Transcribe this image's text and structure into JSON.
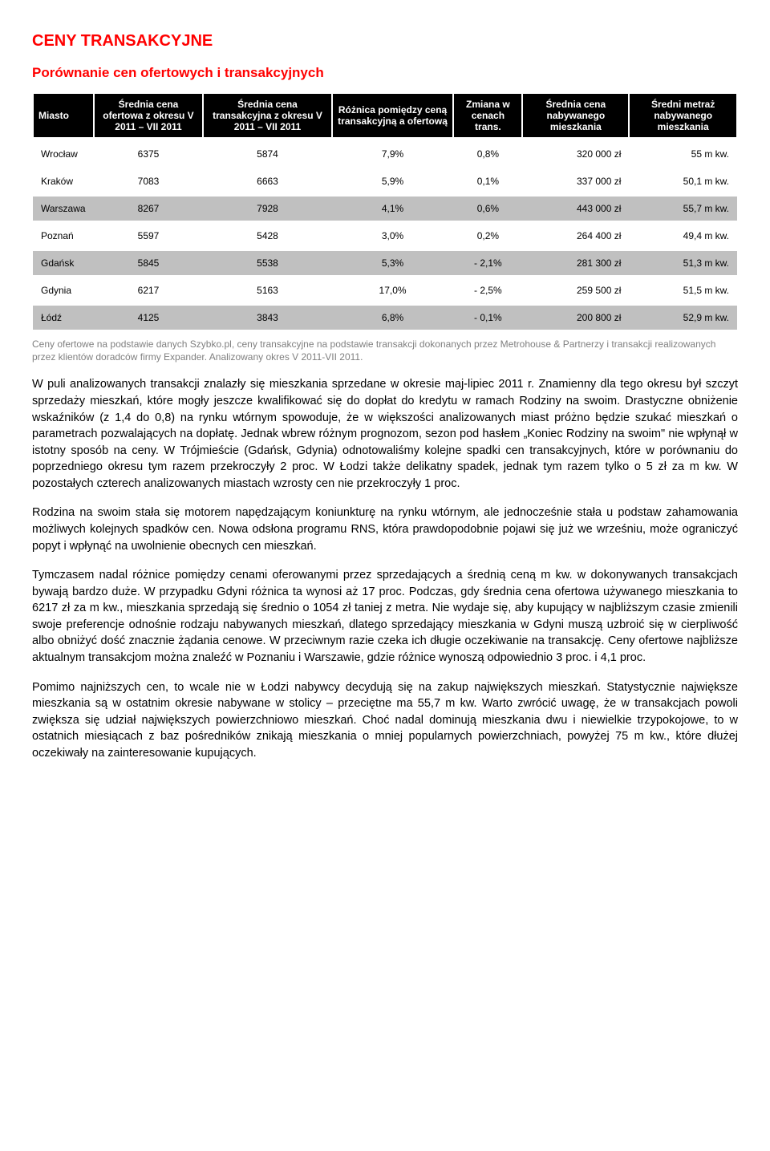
{
  "title": "CENY TRANSAKCYJNE",
  "subtitle": "Porównanie cen ofertowych i transakcyjnych",
  "table": {
    "columns": [
      "Miasto",
      "Średnia cena ofertowa z okresu V 2011 – VII 2011",
      "Średnia cena transakcyjna z okresu V 2011 – VII 2011",
      "Różnica pomiędzy ceną transakcyjną a ofertową",
      "Zmiana w cenach trans.",
      "Średnia cena nabywanego mieszkania",
      "Średni metraż nabywanego mieszkania"
    ],
    "rows": [
      {
        "city": "Wrocław",
        "offer": "6375",
        "trans": "5874",
        "diff": "7,9%",
        "chg": "0,8%",
        "avgPrice": "320 000 zł",
        "avgArea": "55 m kw."
      },
      {
        "city": "Kraków",
        "offer": "7083",
        "trans": "6663",
        "diff": "5,9%",
        "chg": "0,1%",
        "avgPrice": "337 000 zł",
        "avgArea": "50,1 m kw."
      },
      {
        "city": "Warszawa",
        "offer": "8267",
        "trans": "7928",
        "diff": "4,1%",
        "chg": "0,6%",
        "avgPrice": "443 000 zł",
        "avgArea": "55,7 m kw."
      },
      {
        "city": "Poznań",
        "offer": "5597",
        "trans": "5428",
        "diff": "3,0%",
        "chg": "0,2%",
        "avgPrice": "264 400 zł",
        "avgArea": "49,4 m kw."
      },
      {
        "city": "Gdańsk",
        "offer": "5845",
        "trans": "5538",
        "diff": "5,3%",
        "chg": "- 2,1%",
        "avgPrice": "281 300 zł",
        "avgArea": "51,3 m kw."
      },
      {
        "city": "Gdynia",
        "offer": "6217",
        "trans": "5163",
        "diff": "17,0%",
        "chg": "- 2,5%",
        "avgPrice": "259 500 zł",
        "avgArea": "51,5 m kw."
      },
      {
        "city": "Łódź",
        "offer": "4125",
        "trans": "3843",
        "diff": "6,8%",
        "chg": "- 0,1%",
        "avgPrice": "200 800 zł",
        "avgArea": "52,9 m kw."
      }
    ],
    "row_bg_colors": [
      "#ffffff",
      "#ffffff",
      "#c0c0c0",
      "#ffffff",
      "#c0c0c0",
      "#ffffff",
      "#c0c0c0"
    ],
    "header_bg": "#000000",
    "header_fg": "#ffffff",
    "font_size": 12
  },
  "footnote": "Ceny ofertowe na podstawie danych Szybko.pl, ceny transakcyjne na podstawie transakcji dokonanych przez Metrohouse & Partnerzy i transakcji realizowanych przez klientów doradców firmy Expander. Analizowany okres V 2011-VII 2011.",
  "paragraphs": [
    "W puli analizowanych transakcji znalazły się mieszkania sprzedane w okresie maj-lipiec 2011 r. Znamienny dla tego okresu był szczyt sprzedaży mieszkań, które mogły jeszcze kwalifikować się do dopłat do kredytu w ramach Rodziny na swoim. Drastyczne obniżenie wskaźników (z 1,4 do 0,8) na rynku wtórnym spowoduje, że w większości analizowanych miast próżno będzie szukać mieszkań o parametrach pozwalających na dopłatę. Jednak wbrew różnym prognozom, sezon pod hasłem „Koniec Rodziny na swoim\" nie wpłynął w istotny sposób na ceny. W Trójmieście (Gdańsk, Gdynia) odnotowaliśmy kolejne spadki cen transakcyjnych, które w porównaniu do poprzedniego okresu tym razem przekroczyły 2 proc. W Łodzi także delikatny spadek, jednak tym razem tylko o 5 zł za m kw. W pozostałych czterech analizowanych miastach wzrosty cen nie przekroczyły 1 proc.",
    "Rodzina na swoim stała się motorem napędzającym koniunkturę na rynku wtórnym, ale jednocześnie stała u podstaw zahamowania możliwych kolejnych spadków cen. Nowa odsłona programu RNS, która prawdopodobnie pojawi się już we wrześniu, może ograniczyć popyt i wpłynąć na uwolnienie obecnych cen mieszkań.",
    "Tymczasem nadal różnice pomiędzy cenami oferowanymi przez sprzedających a średnią ceną m kw. w dokonywanych transakcjach bywają bardzo duże. W przypadku Gdyni różnica ta wynosi aż 17 proc. Podczas, gdy średnia cena ofertowa używanego mieszkania to 6217 zł za m kw., mieszkania sprzedają się średnio o 1054 zł taniej z metra. Nie wydaje się, aby kupujący w najbliższym czasie zmienili swoje preferencje odnośnie rodzaju nabywanych mieszkań, dlatego sprzedający mieszkania w Gdyni muszą uzbroić się w cierpliwość albo obniżyć dość znacznie żądania cenowe. W przeciwnym razie czeka ich długie oczekiwanie na transakcję. Ceny ofertowe najbliższe aktualnym transakcjom można znaleźć w Poznaniu i Warszawie, gdzie różnice wynoszą odpowiednio 3 proc. i 4,1 proc.",
    "Pomimo najniższych cen, to wcale nie w Łodzi nabywcy decydują się na zakup największych mieszkań. Statystycznie największe mieszkania są w ostatnim okresie nabywane w stolicy – przeciętne ma 55,7 m kw. Warto zwrócić uwagę, że w transakcjach powoli zwiększa się udział największych powierzchniowo mieszkań. Choć nadal dominują mieszkania dwu i niewielkie trzypokojowe, to w ostatnich miesiącach z baz pośredników znikają mieszkania o mniej popularnych powierzchniach, powyżej 75 m kw., które dłużej oczekiwały na zainteresowanie kupujących."
  ]
}
